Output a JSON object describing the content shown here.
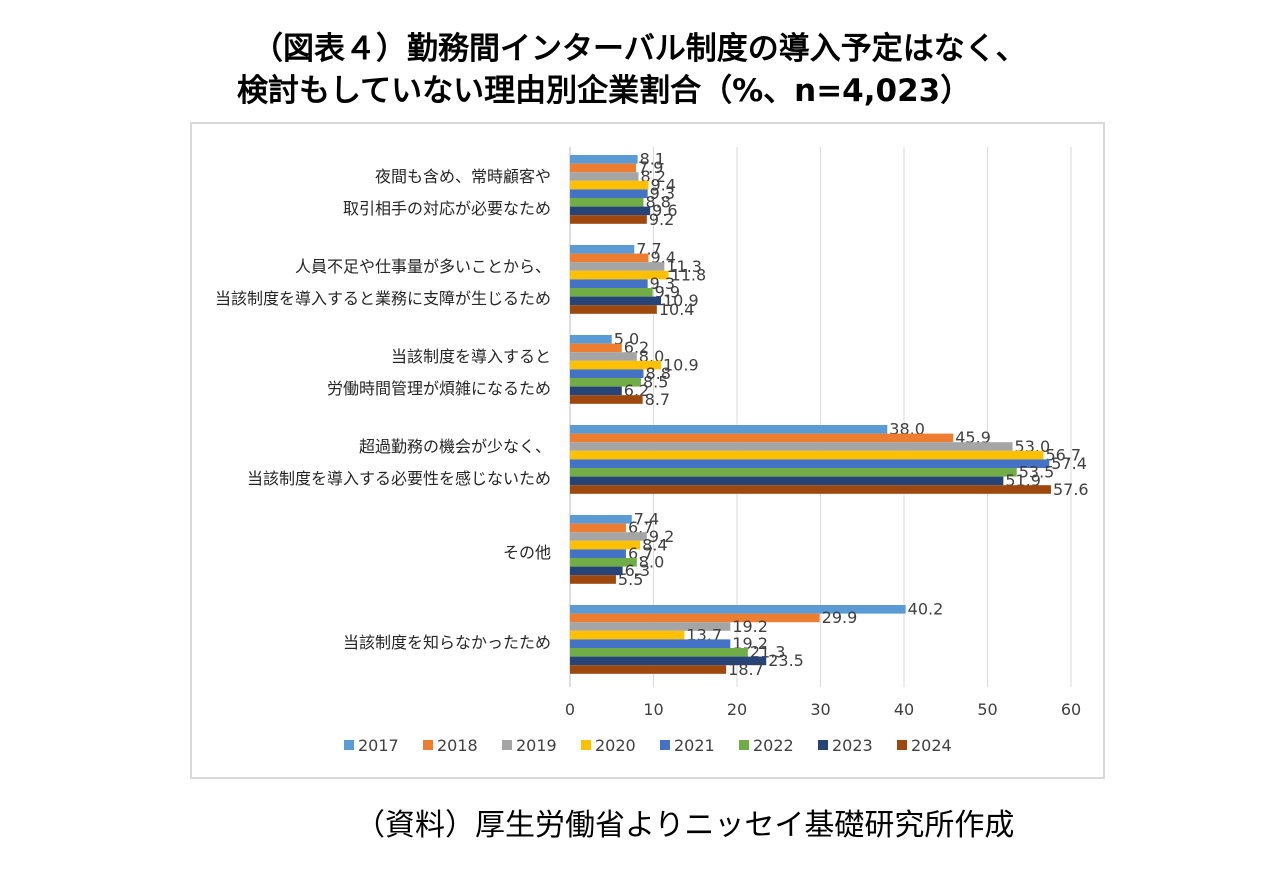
{
  "title": {
    "line1": "（図表４）勤務間インターバル制度の導入予定はなく、",
    "line2": "検討もしていない理由別企業割合（%、n=4,023）"
  },
  "source": "（資料）厚生労働省よりニッセイ基礎研究所作成",
  "chart_data": {
    "type": "bar",
    "orientation": "horizontal",
    "categories": [
      [
        "夜間も含め、常時顧客や",
        "取引相手の対応が必要なため"
      ],
      [
        "人員不足や仕事量が多いことから、",
        "当該制度を導入すると業務に支障が生じるため"
      ],
      [
        "当該制度を導入すると",
        "労働時間管理が煩雑になるため"
      ],
      [
        "超過勤務の機会が少なく、",
        "当該制度を導入する必要性を感じないため"
      ],
      [
        "その他"
      ],
      [
        "当該制度を知らなかったため"
      ]
    ],
    "series": [
      {
        "name": "2017",
        "color": "#5b9bd5",
        "values": [
          8.1,
          7.7,
          5.0,
          38.0,
          7.4,
          40.2
        ]
      },
      {
        "name": "2018",
        "color": "#ed7d31",
        "values": [
          7.9,
          9.4,
          6.2,
          45.9,
          6.7,
          29.9
        ]
      },
      {
        "name": "2019",
        "color": "#a5a5a5",
        "values": [
          8.2,
          11.3,
          8.0,
          53.0,
          9.2,
          19.2
        ]
      },
      {
        "name": "2020",
        "color": "#ffc000",
        "values": [
          9.4,
          11.8,
          10.9,
          56.7,
          8.4,
          13.7
        ]
      },
      {
        "name": "2021",
        "color": "#4472c4",
        "values": [
          9.3,
          9.3,
          8.8,
          57.4,
          6.7,
          19.2
        ]
      },
      {
        "name": "2022",
        "color": "#70ad47",
        "values": [
          8.8,
          9.9,
          8.5,
          53.5,
          8.0,
          21.3
        ]
      },
      {
        "name": "2023",
        "color": "#264478",
        "values": [
          9.6,
          10.9,
          6.2,
          51.9,
          6.3,
          23.5
        ]
      },
      {
        "name": "2024",
        "color": "#9e480e",
        "values": [
          9.2,
          10.4,
          8.7,
          57.6,
          5.5,
          18.7
        ]
      }
    ],
    "xlim": [
      0,
      60
    ],
    "xticks": [
      0,
      10,
      20,
      30,
      40,
      50,
      60
    ],
    "grid": true,
    "legend_position": "bottom"
  }
}
